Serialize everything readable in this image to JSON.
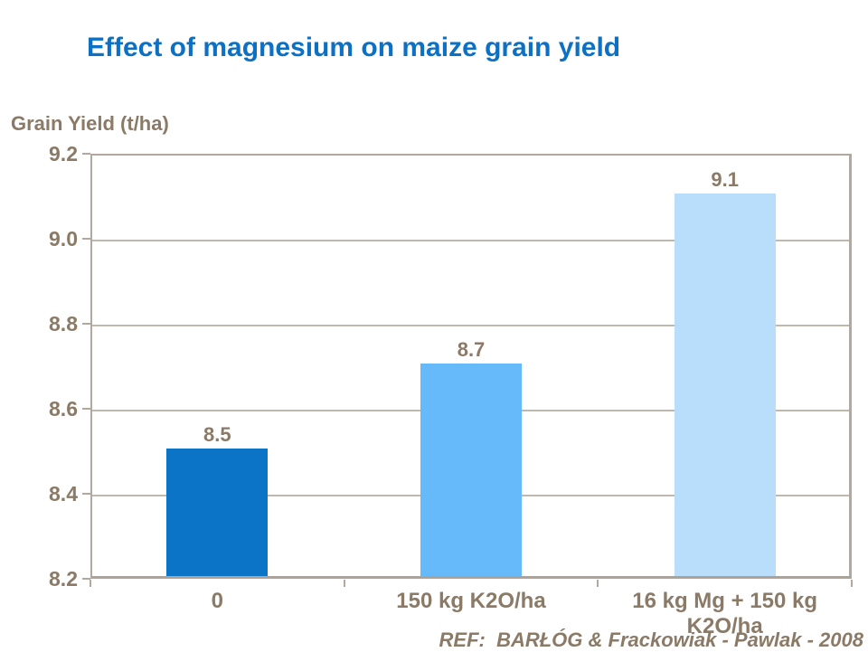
{
  "page": {
    "background": "#FFFFFF"
  },
  "header": {
    "title": "Effect of magnesium on maize grain yield"
  },
  "colors": {
    "title_text": "#0C71C4",
    "axis_text": "#8A7A66",
    "plot_border": "#B2A89E",
    "gridline": "#C0B7AB",
    "background": "#FFFFFF"
  },
  "footer": {
    "reference": "REF:  BARŁÓG & Frackowiak - Pawlak - 2008"
  },
  "chart_data": {
    "type": "bar",
    "title": "Effect of magnesium on maize grain yield",
    "xlabel": "",
    "ylabel": "Grain Yield (t/ha)",
    "categories": [
      "0",
      "150 kg K2O/ha",
      "16 kg Mg + 150 kg K2O/ha"
    ],
    "category_label_lines": [
      [
        "0"
      ],
      [
        "150 kg K2O/ha"
      ],
      [
        "16 kg Mg + 150 kg",
        "K2O/ha"
      ]
    ],
    "values": [
      8.5,
      8.7,
      9.1
    ],
    "data_labels": [
      "8.5",
      "8.7",
      "9.1"
    ],
    "bar_colors": [
      "#0B74C7",
      "#66BAFA",
      "#B9DEFB"
    ],
    "ylim": [
      8.2,
      9.2
    ],
    "yticks": [
      9.2,
      9.0,
      8.8,
      8.6,
      8.4,
      8.2
    ],
    "ytick_labels": [
      "9.2",
      "9.0",
      "8.8",
      "8.6",
      "8.4",
      "8.2"
    ],
    "grid": true,
    "gridline_values": [
      9.0,
      8.8,
      8.6,
      8.4
    ],
    "legend": "none",
    "annotation": "REF:  BARŁÓG & Frackowiak - Pawlak - 2008"
  }
}
